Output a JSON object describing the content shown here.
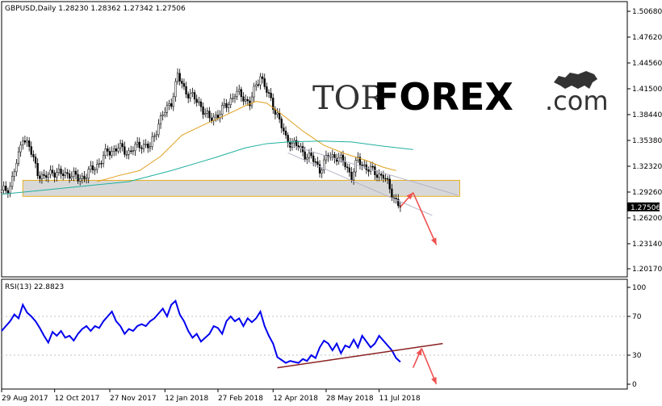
{
  "header": {
    "symbol_line": "GBPUSD,Daily  1.28230 1.28362 1.27342 1.27506"
  },
  "logo": {
    "part1": "TOR",
    "part2": "FOREX",
    "part3": ".com",
    "part2_color": "#ff4a1c"
  },
  "colors": {
    "candle": "#000000",
    "ma_short": "#e0a020",
    "ma_long": "#20b0a0",
    "support_zone_fill": "#c8c8c8",
    "support_zone_border": "#e8b020",
    "channel": "#b4b4c8",
    "arrow": "#f05050",
    "rsi_line": "#0000ee",
    "rsi_trend": "#8b2020",
    "price_label_bg": "#000000"
  },
  "chart_data": [
    {
      "type": "candlestick",
      "title": "GBPUSD,Daily",
      "ohlc_header": {
        "open": 1.2823,
        "high": 1.28362,
        "low": 1.27342,
        "close": 1.27506
      },
      "last_price_label": "1.27506",
      "y_ticks": [
        "1.50680",
        "1.47620",
        "1.44560",
        "1.41500",
        "1.38440",
        "1.35380",
        "1.32320",
        "1.29260",
        "1.26200",
        "1.23140",
        "1.20170"
      ],
      "ylim": [
        1.2017,
        1.5068
      ],
      "x_ticks": [
        "29 Aug 2017",
        "12 Oct 2017",
        "27 Nov 2017",
        "12 Jan 2018",
        "27 Feb 2018",
        "12 Apr 2018",
        "28 May 2018",
        "11 Jul 2018"
      ],
      "close_path": [
        [
          0,
          1.292
        ],
        [
          4,
          1.3
        ],
        [
          8,
          1.335
        ],
        [
          10,
          1.36
        ],
        [
          13,
          1.345
        ],
        [
          17,
          1.317
        ],
        [
          20,
          1.308
        ],
        [
          24,
          1.318
        ],
        [
          28,
          1.313
        ],
        [
          32,
          1.315
        ],
        [
          36,
          1.308
        ],
        [
          40,
          1.313
        ],
        [
          45,
          1.325
        ],
        [
          50,
          1.34
        ],
        [
          55,
          1.345
        ],
        [
          60,
          1.34
        ],
        [
          66,
          1.35
        ],
        [
          70,
          1.345
        ],
        [
          74,
          1.375
        ],
        [
          80,
          1.4
        ],
        [
          83,
          1.43
        ],
        [
          86,
          1.415
        ],
        [
          90,
          1.405
        ],
        [
          94,
          1.395
        ],
        [
          98,
          1.378
        ],
        [
          102,
          1.385
        ],
        [
          106,
          1.395
        ],
        [
          110,
          1.41
        ],
        [
          114,
          1.405
        ],
        [
          117,
          1.398
        ],
        [
          120,
          1.418
        ],
        [
          122,
          1.432
        ],
        [
          126,
          1.405
        ],
        [
          130,
          1.385
        ],
        [
          134,
          1.355
        ],
        [
          138,
          1.35
        ],
        [
          142,
          1.34
        ],
        [
          146,
          1.333
        ],
        [
          150,
          1.32
        ],
        [
          154,
          1.335
        ],
        [
          158,
          1.335
        ],
        [
          162,
          1.325
        ],
        [
          165,
          1.312
        ],
        [
          168,
          1.33
        ],
        [
          172,
          1.322
        ],
        [
          176,
          1.315
        ],
        [
          180,
          1.312
        ],
        [
          183,
          1.296
        ],
        [
          187,
          1.278
        ],
        [
          188,
          1.275
        ]
      ],
      "ma_short_path": [
        [
          45,
          1.305
        ],
        [
          55,
          1.312
        ],
        [
          65,
          1.318
        ],
        [
          75,
          1.335
        ],
        [
          85,
          1.36
        ],
        [
          95,
          1.372
        ],
        [
          105,
          1.383
        ],
        [
          115,
          1.395
        ],
        [
          120,
          1.4
        ],
        [
          125,
          1.398
        ],
        [
          132,
          1.385
        ],
        [
          142,
          1.365
        ],
        [
          152,
          1.348
        ],
        [
          162,
          1.338
        ],
        [
          172,
          1.33
        ],
        [
          180,
          1.322
        ],
        [
          186,
          1.318
        ]
      ],
      "ma_long_path": [
        [
          0,
          1.29
        ],
        [
          20,
          1.295
        ],
        [
          40,
          1.3
        ],
        [
          60,
          1.305
        ],
        [
          80,
          1.318
        ],
        [
          100,
          1.333
        ],
        [
          115,
          1.345
        ],
        [
          125,
          1.35
        ],
        [
          135,
          1.352
        ],
        [
          150,
          1.353
        ],
        [
          165,
          1.352
        ],
        [
          180,
          1.347
        ],
        [
          194,
          1.343
        ]
      ],
      "support_zone": [
        1.2875,
        1.3065
      ],
      "channel_upper": [
        [
          135,
          1.349
        ],
        [
          215,
          1.289
        ]
      ],
      "channel_lower": [
        [
          135,
          1.339
        ],
        [
          203,
          1.265
        ]
      ],
      "forecast_arrows": [
        [
          [
            188,
            1.275
          ],
          [
            194,
            1.292
          ]
        ],
        [
          [
            194,
            1.292
          ],
          [
            205,
            1.23
          ]
        ]
      ],
      "x_range": [
        0,
        295
      ],
      "x_tick_index": [
        0,
        25,
        51,
        77,
        102,
        128,
        153,
        178
      ]
    },
    {
      "type": "line",
      "title": "RSI(13) 22.8823",
      "y_ticks": [
        "100",
        "70",
        "30",
        "0"
      ],
      "ylim": [
        0,
        100
      ],
      "values": [
        [
          0,
          55
        ],
        [
          2,
          60
        ],
        [
          4,
          65
        ],
        [
          6,
          72
        ],
        [
          8,
          68
        ],
        [
          10,
          82
        ],
        [
          12,
          74
        ],
        [
          14,
          70
        ],
        [
          16,
          65
        ],
        [
          18,
          58
        ],
        [
          20,
          50
        ],
        [
          22,
          43
        ],
        [
          24,
          54
        ],
        [
          26,
          50
        ],
        [
          28,
          55
        ],
        [
          30,
          48
        ],
        [
          32,
          50
        ],
        [
          34,
          45
        ],
        [
          36,
          52
        ],
        [
          38,
          57
        ],
        [
          40,
          60
        ],
        [
          42,
          55
        ],
        [
          44,
          60
        ],
        [
          46,
          58
        ],
        [
          48,
          65
        ],
        [
          50,
          70
        ],
        [
          52,
          75
        ],
        [
          54,
          65
        ],
        [
          56,
          60
        ],
        [
          58,
          52
        ],
        [
          60,
          57
        ],
        [
          62,
          55
        ],
        [
          64,
          60
        ],
        [
          66,
          62
        ],
        [
          68,
          60
        ],
        [
          70,
          65
        ],
        [
          72,
          68
        ],
        [
          74,
          73
        ],
        [
          76,
          78
        ],
        [
          78,
          70
        ],
        [
          80,
          82
        ],
        [
          82,
          86
        ],
        [
          84,
          72
        ],
        [
          86,
          65
        ],
        [
          88,
          55
        ],
        [
          90,
          48
        ],
        [
          92,
          52
        ],
        [
          94,
          44
        ],
        [
          96,
          48
        ],
        [
          98,
          52
        ],
        [
          100,
          60
        ],
        [
          102,
          58
        ],
        [
          104,
          52
        ],
        [
          106,
          65
        ],
        [
          108,
          70
        ],
        [
          110,
          65
        ],
        [
          112,
          68
        ],
        [
          114,
          60
        ],
        [
          116,
          68
        ],
        [
          118,
          64
        ],
        [
          120,
          68
        ],
        [
          122,
          75
        ],
        [
          124,
          60
        ],
        [
          126,
          50
        ],
        [
          128,
          42
        ],
        [
          130,
          28
        ],
        [
          132,
          25
        ],
        [
          134,
          22
        ],
        [
          136,
          24
        ],
        [
          138,
          23
        ],
        [
          140,
          22
        ],
        [
          142,
          26
        ],
        [
          144,
          24
        ],
        [
          146,
          30
        ],
        [
          148,
          27
        ],
        [
          150,
          38
        ],
        [
          152,
          45
        ],
        [
          154,
          42
        ],
        [
          156,
          35
        ],
        [
          158,
          42
        ],
        [
          160,
          32
        ],
        [
          162,
          40
        ],
        [
          164,
          38
        ],
        [
          166,
          46
        ],
        [
          168,
          38
        ],
        [
          170,
          50
        ],
        [
          172,
          44
        ],
        [
          174,
          38
        ],
        [
          176,
          42
        ],
        [
          178,
          50
        ],
        [
          180,
          45
        ],
        [
          182,
          40
        ],
        [
          184,
          35
        ],
        [
          186,
          27
        ],
        [
          188,
          23
        ]
      ],
      "trend_line": [
        [
          130,
          17
        ],
        [
          208,
          42
        ]
      ],
      "forecast_arrows": [
        [
          [
            194,
            17
          ],
          [
            198,
            37
          ]
        ],
        [
          [
            198,
            37
          ],
          [
            205,
            0
          ]
        ]
      ]
    }
  ]
}
